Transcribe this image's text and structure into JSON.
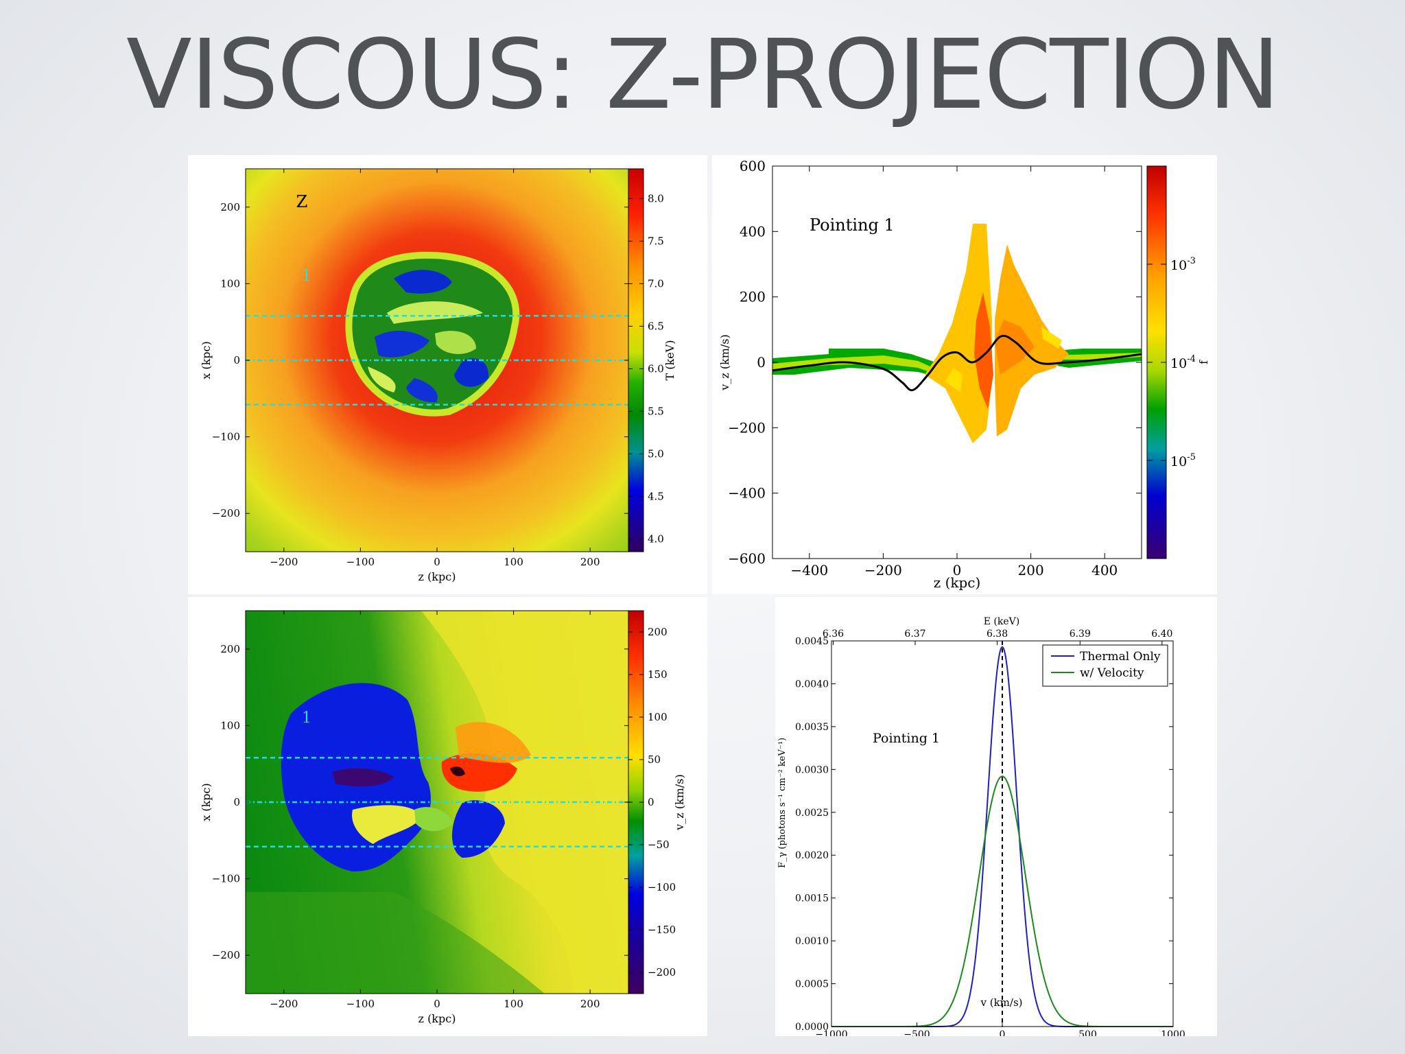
{
  "slide_title": "VISCOUS: Z-PROJECTION",
  "chart_data": [
    {
      "type": "heatmap",
      "id": "temperature-map",
      "xlabel": "z (kpc)",
      "ylabel": "x (kpc)",
      "xlim": [
        -250,
        250
      ],
      "ylim": [
        -250,
        250
      ],
      "xticks": [
        -200,
        -100,
        0,
        100,
        200
      ],
      "yticks": [
        -200,
        -100,
        0,
        100,
        200
      ],
      "annotations": [
        {
          "text": "Z",
          "x": -162,
          "y": 207,
          "color": "#000000"
        },
        {
          "text": "1",
          "x": -172,
          "y": 107,
          "color": "#33dddd"
        }
      ],
      "reference_lines": [
        {
          "y": 58,
          "style": "dashed",
          "color": "#22dddd"
        },
        {
          "y": 0,
          "style": "dashdot",
          "color": "#22dddd"
        },
        {
          "y": -58,
          "style": "dashed",
          "color": "#22dddd"
        }
      ],
      "colorbar": {
        "label": "T (keV)",
        "range": [
          3.85,
          8.35
        ],
        "ticks": [
          "8.0",
          "7.5",
          "7.0",
          "6.5",
          "6.0",
          "5.5",
          "5.0",
          "4.5",
          "4.0"
        ],
        "tick_values": [
          8.0,
          7.5,
          7.0,
          6.5,
          6.0,
          5.5,
          5.0,
          4.5,
          4.0
        ],
        "colormap": "spectral"
      }
    },
    {
      "type": "heatmap",
      "id": "velocity-phase",
      "title": "Pointing 1",
      "xlabel": "z (kpc)",
      "ylabel": "v_z (km/s)",
      "xlim": [
        -500,
        500
      ],
      "ylim": [
        -600,
        600
      ],
      "xticks": [
        -400,
        -200,
        0,
        200,
        400
      ],
      "yticks": [
        600,
        400,
        200,
        0,
        -200,
        -400,
        -600
      ],
      "ytick_labels": [
        "600",
        "400",
        "200",
        "0",
        "−200",
        "−400",
        "−600"
      ],
      "xtick_labels": [
        "−400",
        "−200",
        "0",
        "200",
        "400"
      ],
      "mean_curve": {
        "x": [
          -500,
          -400,
          -300,
          -200,
          -150,
          -120,
          -80,
          -40,
          0,
          40,
          80,
          120,
          160,
          220,
          300,
          400,
          500
        ],
        "y": [
          -25,
          -10,
          0,
          -20,
          -60,
          -85,
          -40,
          15,
          30,
          0,
          30,
          80,
          60,
          0,
          0,
          10,
          25
        ]
      },
      "colorbar": {
        "label": "f",
        "scale": "log",
        "range": [
          1e-06,
          0.01
        ],
        "ticks": [
          "10",
          "10",
          "10"
        ],
        "tick_exponents": [
          "-3",
          "-4",
          "-5"
        ],
        "tick_values": [
          0.001,
          0.0001,
          1e-05
        ],
        "colormap": "spectral"
      }
    },
    {
      "type": "heatmap",
      "id": "velocity-map",
      "xlabel": "z (kpc)",
      "ylabel": "x (kpc)",
      "xlim": [
        -250,
        250
      ],
      "ylim": [
        -250,
        250
      ],
      "xticks": [
        -200,
        -100,
        0,
        100,
        200
      ],
      "yticks": [
        -200,
        -100,
        0,
        100,
        200
      ],
      "annotations": [
        {
          "text": "1",
          "x": -172,
          "y": 107,
          "color": "#33dddd"
        }
      ],
      "reference_lines": [
        {
          "y": 58,
          "style": "dashed",
          "color": "#22dddd"
        },
        {
          "y": 0,
          "style": "dashdot",
          "color": "#22dddd"
        },
        {
          "y": -58,
          "style": "dashed",
          "color": "#22dddd"
        }
      ],
      "colorbar": {
        "label": "v_z (km/s)",
        "range": [
          -225,
          225
        ],
        "ticks": [
          "200",
          "150",
          "100",
          "50",
          "0",
          "−50",
          "−100",
          "−150",
          "−200"
        ],
        "tick_values": [
          200,
          150,
          100,
          50,
          0,
          -50,
          -100,
          -150,
          -200
        ],
        "colormap": "spectral"
      }
    },
    {
      "type": "line",
      "id": "line-spectrum",
      "annotation": "Pointing 1",
      "xlabel": "v (km/s)",
      "ylabel": "F_γ (photons s⁻¹ cm⁻² keV⁻¹)",
      "top_xlabel": "E (keV)",
      "xlim": [
        -1000,
        1000
      ],
      "ylim": [
        0,
        0.0045
      ],
      "xticks": [
        -1000,
        -500,
        0,
        500,
        1000
      ],
      "xtick_labels": [
        "−1000",
        "−500",
        "0",
        "500",
        "1000"
      ],
      "yticks": [
        "0.0000",
        "0.0005",
        "0.0010",
        "0.0015",
        "0.0020",
        "0.0025",
        "0.0030",
        "0.0035",
        "0.0040",
        "0.0045"
      ],
      "top_ticks": [
        "6.36",
        "6.37",
        "6.38",
        "6.39",
        "6.40"
      ],
      "top_tick_positions_v": [
        -990,
        -510,
        -30,
        455,
        935
      ],
      "vline": 0,
      "series": [
        {
          "name": "Thermal Only",
          "color": "#1f1fbf",
          "peak": 0.00443,
          "center": 0,
          "sigma": 85
        },
        {
          "name": "w/ Velocity",
          "color": "#1a8a1a",
          "peak": 0.00292,
          "center": 0,
          "sigma": 135
        }
      ]
    }
  ]
}
